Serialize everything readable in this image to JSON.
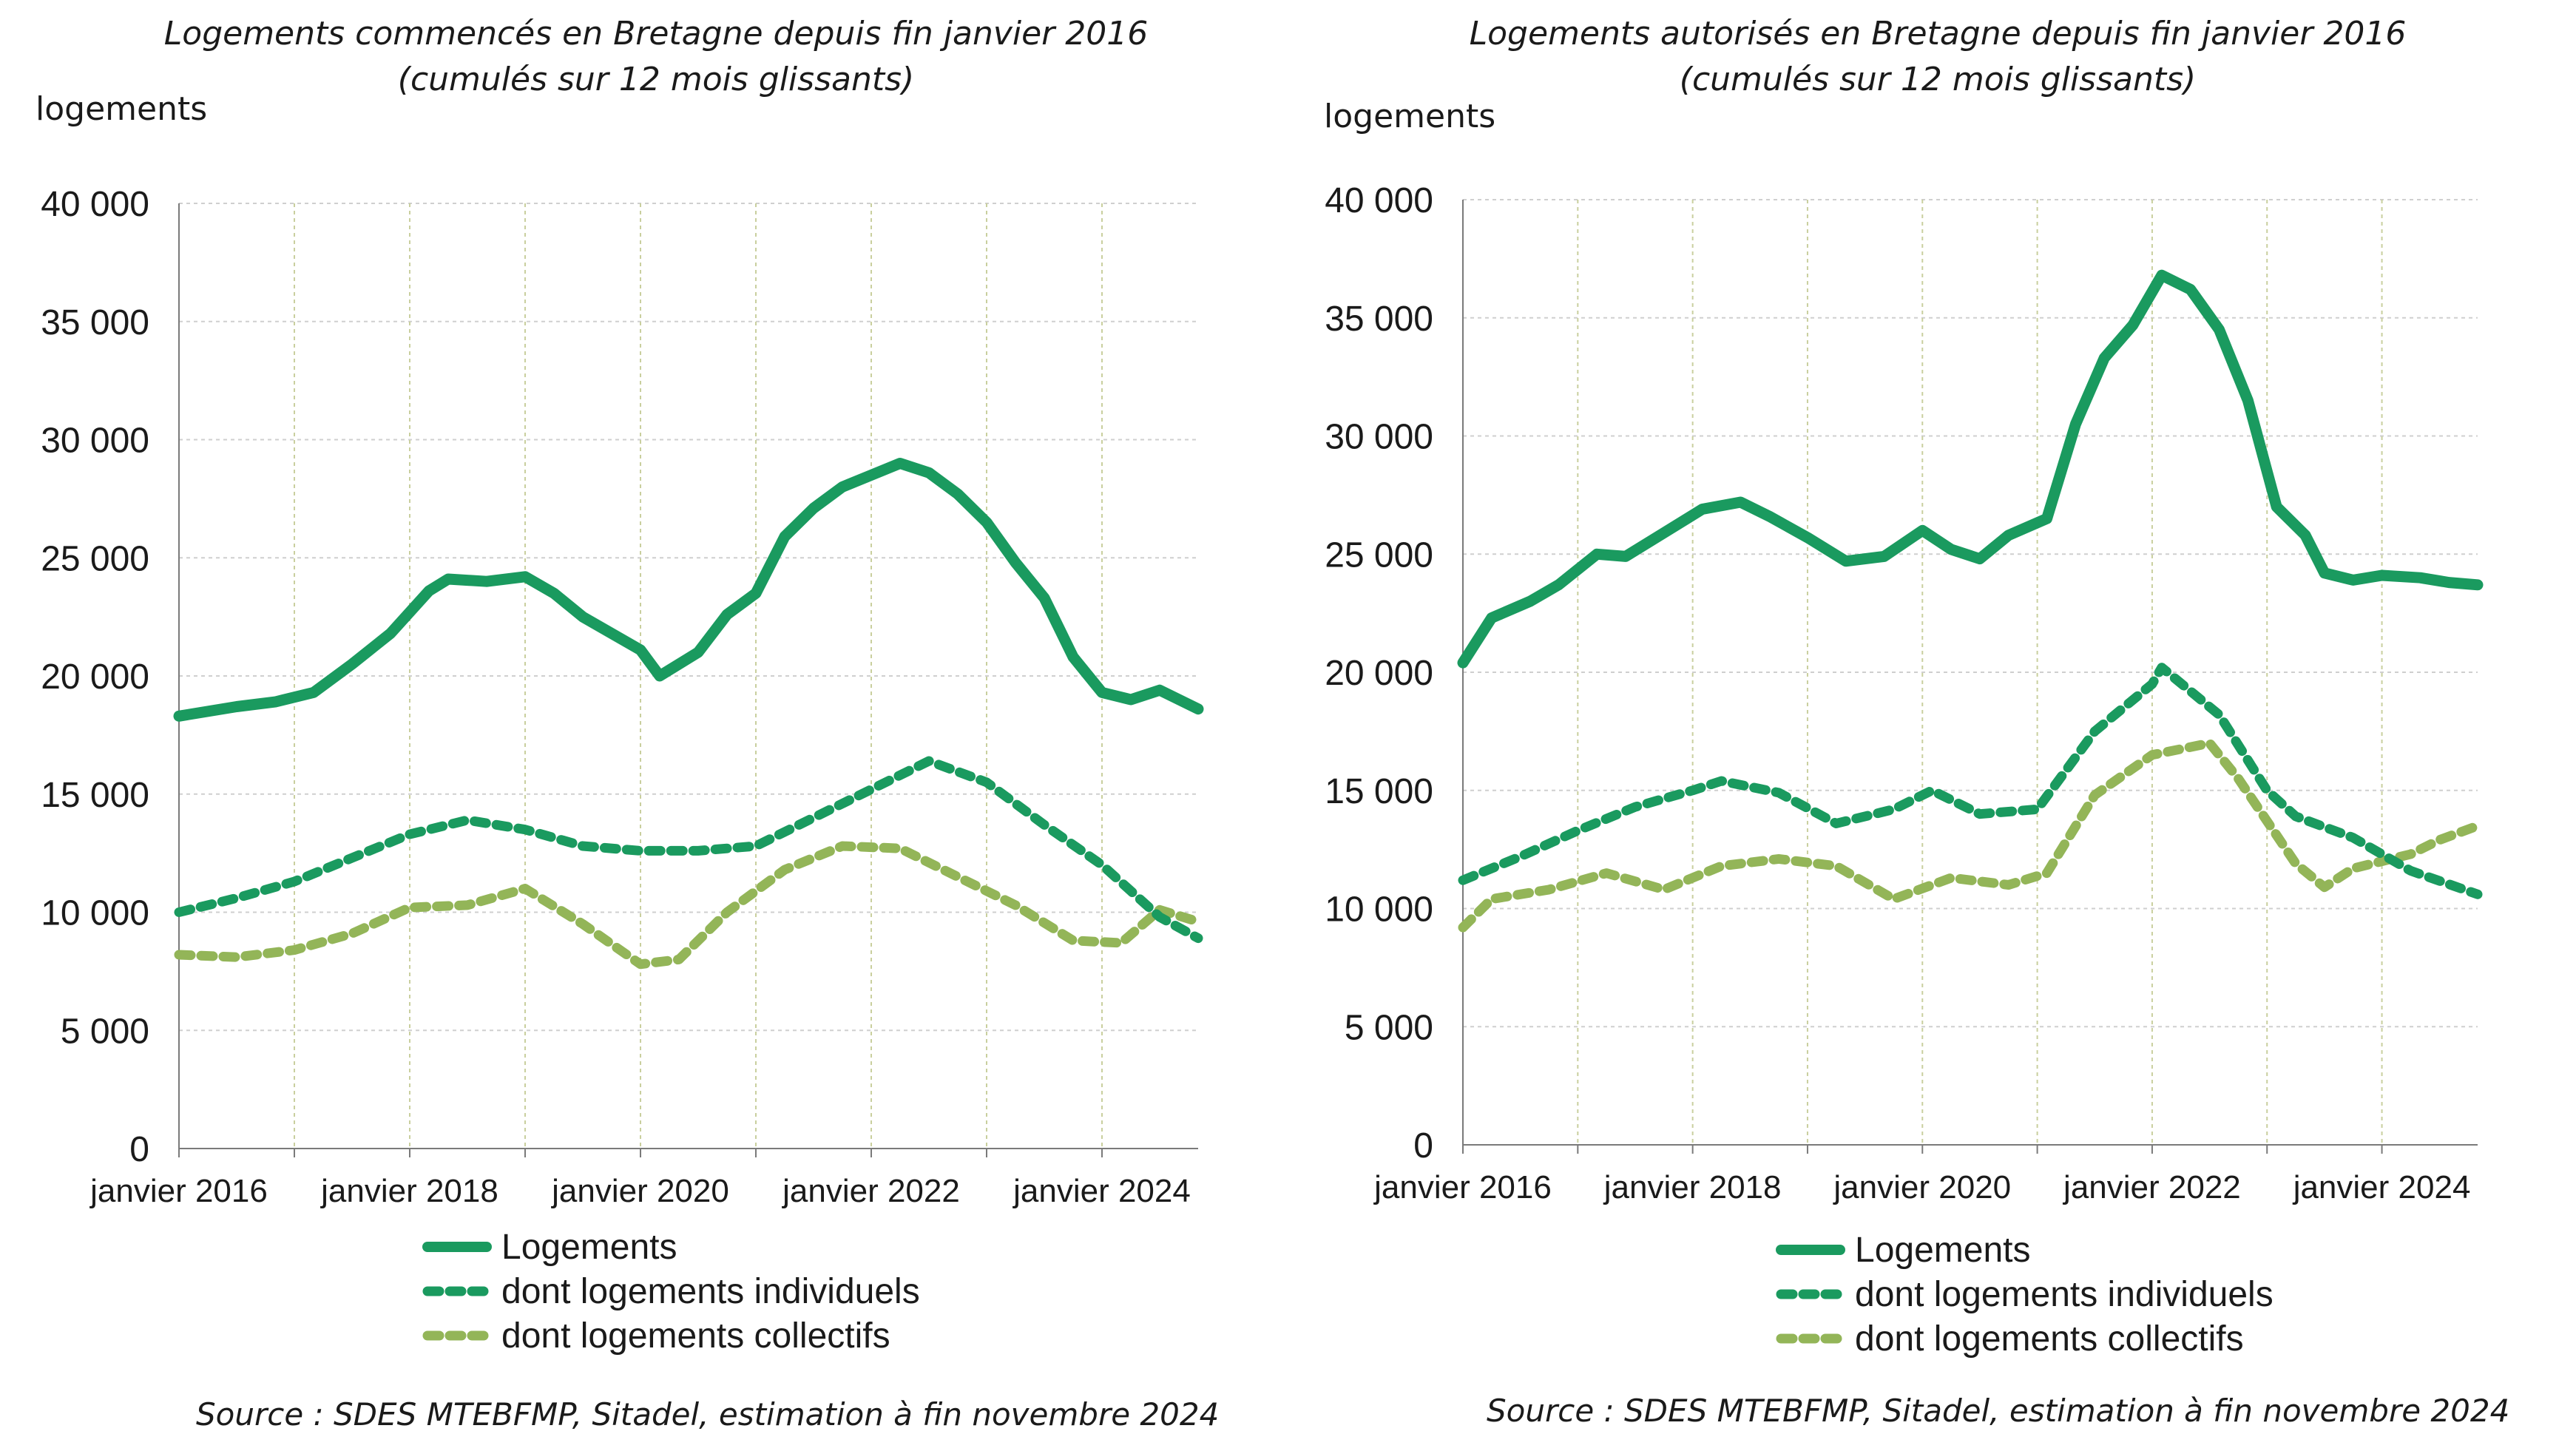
{
  "colors": {
    "total": "#1a9a5f",
    "individuels": "#1a9a5f",
    "collectifs": "#93b558",
    "grid_h": "#cfcfcf",
    "grid_v": "#c9cf9e",
    "axis": "#7a7a7a"
  },
  "y_ticks": [
    "0",
    "5 000",
    "10 000",
    "15 000",
    "20 000",
    "25 000",
    "30 000",
    "35 000",
    "40 000"
  ],
  "x_ticks": [
    "janvier 2016",
    "janvier 2018",
    "janvier 2020",
    "janvier 2022",
    "janvier 2024"
  ],
  "chart_data": [
    {
      "type": "line",
      "title": "Logements commencés en Bretagne depuis fin janvier 2016",
      "subtitle": "(cumulés sur 12 mois glissants)",
      "ylabel": "logements",
      "ylim": [
        0,
        40000
      ],
      "x_start": "2016-01",
      "x_end": "2024-11",
      "grid": true,
      "legend_position": "bottom",
      "series": [
        {
          "name": "Logements",
          "style": "solid",
          "points": [
            [
              "2016-01",
              18300
            ],
            [
              "2016-07",
              18700
            ],
            [
              "2016-11",
              18900
            ],
            [
              "2017-03",
              19300
            ],
            [
              "2017-07",
              20500
            ],
            [
              "2017-11",
              21800
            ],
            [
              "2018-03",
              23600
            ],
            [
              "2018-05",
              24100
            ],
            [
              "2018-09",
              24000
            ],
            [
              "2019-01",
              24200
            ],
            [
              "2019-04",
              23500
            ],
            [
              "2019-07",
              22500
            ],
            [
              "2019-10",
              21800
            ],
            [
              "2020-01",
              21100
            ],
            [
              "2020-03",
              20000
            ],
            [
              "2020-07",
              21000
            ],
            [
              "2020-10",
              22600
            ],
            [
              "2021-01",
              23500
            ],
            [
              "2021-04",
              25900
            ],
            [
              "2021-07",
              27100
            ],
            [
              "2021-10",
              28000
            ],
            [
              "2022-01",
              28500
            ],
            [
              "2022-04",
              29000
            ],
            [
              "2022-07",
              28600
            ],
            [
              "2022-10",
              27700
            ],
            [
              "2023-01",
              26500
            ],
            [
              "2023-04",
              24800
            ],
            [
              "2023-07",
              23300
            ],
            [
              "2023-10",
              20800
            ],
            [
              "2024-01",
              19300
            ],
            [
              "2024-04",
              19000
            ],
            [
              "2024-07",
              19400
            ],
            [
              "2024-11",
              18600
            ]
          ]
        },
        {
          "name": "dont logements individuels",
          "style": "dashed",
          "points": [
            [
              "2016-01",
              10000
            ],
            [
              "2016-07",
              10600
            ],
            [
              "2017-01",
              11300
            ],
            [
              "2017-07",
              12300
            ],
            [
              "2018-01",
              13300
            ],
            [
              "2018-07",
              13900
            ],
            [
              "2019-01",
              13500
            ],
            [
              "2019-07",
              12800
            ],
            [
              "2020-01",
              12600
            ],
            [
              "2020-07",
              12600
            ],
            [
              "2021-01",
              12800
            ],
            [
              "2021-07",
              14000
            ],
            [
              "2022-01",
              15200
            ],
            [
              "2022-07",
              16400
            ],
            [
              "2023-01",
              15500
            ],
            [
              "2023-07",
              13700
            ],
            [
              "2024-01",
              12000
            ],
            [
              "2024-07",
              9800
            ],
            [
              "2024-11",
              8900
            ]
          ]
        },
        {
          "name": "dont logements collectifs",
          "style": "dashed",
          "points": [
            [
              "2016-01",
              8200
            ],
            [
              "2016-07",
              8100
            ],
            [
              "2017-01",
              8400
            ],
            [
              "2017-07",
              9100
            ],
            [
              "2018-01",
              10200
            ],
            [
              "2018-07",
              10300
            ],
            [
              "2019-01",
              11000
            ],
            [
              "2019-07",
              9500
            ],
            [
              "2020-01",
              7800
            ],
            [
              "2020-05",
              8000
            ],
            [
              "2020-10",
              10000
            ],
            [
              "2021-04",
              11800
            ],
            [
              "2021-10",
              12800
            ],
            [
              "2022-04",
              12700
            ],
            [
              "2022-10",
              11500
            ],
            [
              "2023-04",
              10300
            ],
            [
              "2023-10",
              8800
            ],
            [
              "2024-03",
              8700
            ],
            [
              "2024-07",
              10100
            ],
            [
              "2024-11",
              9600
            ]
          ]
        }
      ]
    },
    {
      "type": "line",
      "title": "Logements autorisés en Bretagne depuis fin janvier 2016",
      "subtitle": "(cumulés sur 12 mois glissants)",
      "ylabel": "logements",
      "ylim": [
        0,
        40000
      ],
      "x_start": "2016-01",
      "x_end": "2024-11",
      "grid": true,
      "legend_position": "bottom",
      "series": [
        {
          "name": "Logements",
          "style": "solid",
          "points": [
            [
              "2016-01",
              20400
            ],
            [
              "2016-04",
              22300
            ],
            [
              "2016-08",
              23000
            ],
            [
              "2016-11",
              23700
            ],
            [
              "2017-03",
              25000
            ],
            [
              "2017-06",
              24900
            ],
            [
              "2017-10",
              25900
            ],
            [
              "2018-02",
              26900
            ],
            [
              "2018-06",
              27200
            ],
            [
              "2018-09",
              26600
            ],
            [
              "2019-01",
              25700
            ],
            [
              "2019-05",
              24700
            ],
            [
              "2019-09",
              24900
            ],
            [
              "2020-01",
              26000
            ],
            [
              "2020-04",
              25200
            ],
            [
              "2020-07",
              24800
            ],
            [
              "2020-10",
              25800
            ],
            [
              "2021-02",
              26500
            ],
            [
              "2021-05",
              30500
            ],
            [
              "2021-08",
              33300
            ],
            [
              "2021-11",
              34700
            ],
            [
              "2022-02",
              36800
            ],
            [
              "2022-05",
              36200
            ],
            [
              "2022-08",
              34500
            ],
            [
              "2022-11",
              31500
            ],
            [
              "2023-02",
              27000
            ],
            [
              "2023-05",
              25800
            ],
            [
              "2023-07",
              24200
            ],
            [
              "2023-10",
              23900
            ],
            [
              "2024-01",
              24100
            ],
            [
              "2024-05",
              24000
            ],
            [
              "2024-08",
              23800
            ],
            [
              "2024-11",
              23700
            ]
          ]
        },
        {
          "name": "dont logements individuels",
          "style": "dashed",
          "points": [
            [
              "2016-01",
              11200
            ],
            [
              "2016-07",
              12200
            ],
            [
              "2017-01",
              13300
            ],
            [
              "2017-07",
              14300
            ],
            [
              "2018-01",
              15000
            ],
            [
              "2018-04",
              15400
            ],
            [
              "2018-10",
              14900
            ],
            [
              "2019-04",
              13600
            ],
            [
              "2019-10",
              14200
            ],
            [
              "2020-02",
              15000
            ],
            [
              "2020-07",
              14000
            ],
            [
              "2021-01",
              14200
            ],
            [
              "2021-07",
              17500
            ],
            [
              "2022-01",
              19500
            ],
            [
              "2022-02",
              20200
            ],
            [
              "2022-08",
              18200
            ],
            [
              "2023-01",
              15000
            ],
            [
              "2023-04",
              13900
            ],
            [
              "2023-10",
              13000
            ],
            [
              "2024-04",
              11600
            ],
            [
              "2024-11",
              10600
            ]
          ]
        },
        {
          "name": "dont logements collectifs",
          "style": "dashed",
          "points": [
            [
              "2016-01",
              9200
            ],
            [
              "2016-04",
              10400
            ],
            [
              "2016-10",
              10800
            ],
            [
              "2017-04",
              11500
            ],
            [
              "2017-10",
              10800
            ],
            [
              "2018-04",
              11800
            ],
            [
              "2018-10",
              12100
            ],
            [
              "2019-04",
              11800
            ],
            [
              "2019-10",
              10400
            ],
            [
              "2020-04",
              11300
            ],
            [
              "2020-10",
              11000
            ],
            [
              "2021-02",
              11500
            ],
            [
              "2021-07",
              14800
            ],
            [
              "2022-01",
              16500
            ],
            [
              "2022-07",
              17000
            ],
            [
              "2022-10",
              15500
            ],
            [
              "2023-04",
              11900
            ],
            [
              "2023-07",
              10900
            ],
            [
              "2023-10",
              11700
            ],
            [
              "2024-04",
              12300
            ],
            [
              "2024-07",
              12900
            ],
            [
              "2024-11",
              13500
            ]
          ]
        }
      ]
    }
  ],
  "legend": [
    {
      "label": "Logements",
      "style": "solid"
    },
    {
      "label": "dont logements individuels",
      "style": "dashed-dark"
    },
    {
      "label": "dont logements collectifs",
      "style": "dashed-light"
    }
  ],
  "sources": [
    "Source : SDES MTEBFMP, Sitadel, estimation à fin novembre 2024",
    "Source : SDES MTEBFMP, Sitadel, estimation à fin novembre 2024"
  ]
}
